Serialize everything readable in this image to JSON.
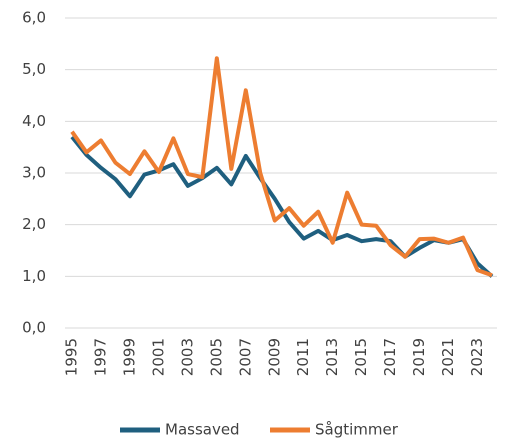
{
  "chart_data": {
    "type": "line",
    "x": [
      1995,
      1996,
      1997,
      1998,
      1999,
      2000,
      2001,
      2002,
      2003,
      2004,
      2005,
      2006,
      2007,
      2008,
      2009,
      2010,
      2011,
      2012,
      2013,
      2014,
      2015,
      2016,
      2017,
      2018,
      2019,
      2020,
      2021,
      2022,
      2023,
      2024
    ],
    "series": [
      {
        "name": "Massaved",
        "color": "#1f5f7f",
        "values": [
          3.7,
          3.35,
          3.1,
          2.88,
          2.55,
          2.97,
          3.05,
          3.17,
          2.75,
          2.9,
          3.1,
          2.78,
          3.33,
          2.9,
          2.5,
          2.05,
          1.73,
          1.88,
          1.7,
          1.8,
          1.68,
          1.72,
          1.68,
          1.38,
          1.55,
          1.7,
          1.65,
          1.72,
          1.25,
          1.0
        ]
      },
      {
        "name": "Sågtimmer",
        "color": "#ed7d31",
        "values": [
          3.8,
          3.4,
          3.63,
          3.2,
          2.98,
          3.42,
          3.02,
          3.67,
          2.98,
          2.92,
          5.22,
          3.08,
          4.6,
          3.0,
          2.08,
          2.32,
          1.98,
          2.25,
          1.65,
          2.62,
          2.0,
          1.98,
          1.6,
          1.38,
          1.72,
          1.73,
          1.65,
          1.75,
          1.12,
          1.02
        ]
      }
    ],
    "xlim": [
      1995,
      2024
    ],
    "xticks": [
      1995,
      1997,
      1999,
      2001,
      2003,
      2005,
      2007,
      2009,
      2011,
      2013,
      2015,
      2017,
      2019,
      2021,
      2023
    ],
    "ylim": [
      0,
      6
    ],
    "yticks": [
      {
        "value": 0,
        "label": "0,0"
      },
      {
        "value": 1,
        "label": "1,0"
      },
      {
        "value": 2,
        "label": "2,0"
      },
      {
        "value": 3,
        "label": "3,0"
      },
      {
        "value": 4,
        "label": "4,0"
      },
      {
        "value": 5,
        "label": "5,0"
      },
      {
        "value": 6,
        "label": "6,0"
      }
    ],
    "grid": true,
    "legend": "bottom"
  }
}
